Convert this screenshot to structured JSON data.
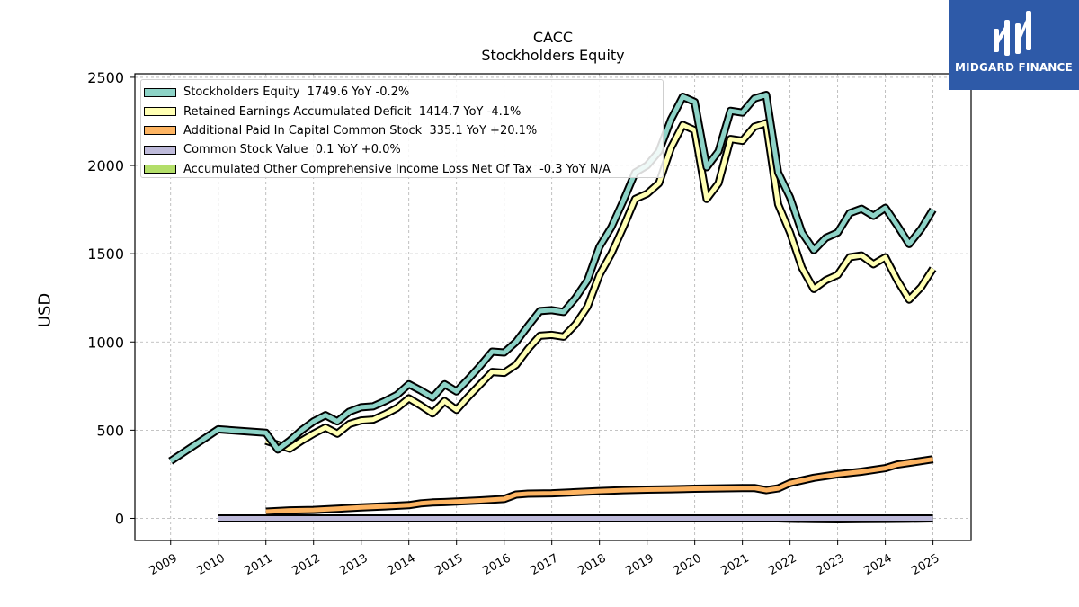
{
  "header": {
    "ticker": "CACC",
    "subtitle": "Stockholders  Equity"
  },
  "brand": {
    "name": "MIDGARD FINANCE",
    "color": "#2e5aa8"
  },
  "chart_data": {
    "type": "line",
    "title": "CACC",
    "subtitle": "Stockholders  Equity",
    "xlabel": "",
    "ylabel": "USD",
    "ylim": [
      -125,
      2520
    ],
    "xlim": [
      2008.25,
      2025.8
    ],
    "yticks": [
      0,
      500,
      1000,
      1500,
      2000,
      2500
    ],
    "xticks": [
      "2009",
      "2010",
      "2011",
      "2012",
      "2013",
      "2014",
      "2015",
      "2016",
      "2017",
      "2018",
      "2019",
      "2020",
      "2021",
      "2022",
      "2023",
      "2024",
      "2025"
    ],
    "grid": true,
    "legend_position": "top-left",
    "series": [
      {
        "name": "Stockholders Equity",
        "legend_label": "Stockholders Equity  1749.6 YoY -0.2%",
        "color": "#8dd3c7",
        "points": [
          [
            2009.0,
            325
          ],
          [
            2010.0,
            505
          ],
          [
            2011.0,
            485
          ],
          [
            2011.25,
            390
          ],
          [
            2011.5,
            440
          ],
          [
            2011.75,
            500
          ],
          [
            2012.0,
            550
          ],
          [
            2012.25,
            585
          ],
          [
            2012.5,
            550
          ],
          [
            2012.75,
            605
          ],
          [
            2013.0,
            630
          ],
          [
            2013.25,
            635
          ],
          [
            2013.5,
            665
          ],
          [
            2013.75,
            700
          ],
          [
            2014.0,
            760
          ],
          [
            2014.25,
            725
          ],
          [
            2014.5,
            685
          ],
          [
            2014.75,
            760
          ],
          [
            2015.0,
            720
          ],
          [
            2015.25,
            790
          ],
          [
            2015.5,
            865
          ],
          [
            2015.75,
            945
          ],
          [
            2016.0,
            940
          ],
          [
            2016.25,
            1000
          ],
          [
            2016.5,
            1090
          ],
          [
            2016.75,
            1175
          ],
          [
            2017.0,
            1180
          ],
          [
            2017.25,
            1170
          ],
          [
            2017.5,
            1250
          ],
          [
            2017.75,
            1350
          ],
          [
            2018.0,
            1540
          ],
          [
            2018.25,
            1650
          ],
          [
            2018.5,
            1800
          ],
          [
            2018.75,
            1960
          ],
          [
            2019.0,
            2000
          ],
          [
            2019.25,
            2080
          ],
          [
            2019.5,
            2260
          ],
          [
            2019.75,
            2390
          ],
          [
            2020.0,
            2360
          ],
          [
            2020.25,
            1990
          ],
          [
            2020.5,
            2080
          ],
          [
            2020.75,
            2310
          ],
          [
            2021.0,
            2300
          ],
          [
            2021.25,
            2380
          ],
          [
            2021.5,
            2400
          ],
          [
            2021.75,
            1960
          ],
          [
            2022.0,
            1820
          ],
          [
            2022.25,
            1620
          ],
          [
            2022.5,
            1520
          ],
          [
            2022.75,
            1590
          ],
          [
            2023.0,
            1620
          ],
          [
            2023.25,
            1730
          ],
          [
            2023.5,
            1755
          ],
          [
            2023.75,
            1715
          ],
          [
            2024.0,
            1760
          ],
          [
            2024.25,
            1660
          ],
          [
            2024.5,
            1555
          ],
          [
            2024.75,
            1640
          ],
          [
            2025.0,
            1750
          ]
        ]
      },
      {
        "name": "Retained Earnings Accumulated Deficit",
        "legend_label": "Retained Earnings Accumulated Deficit  1414.7 YoY -4.1%",
        "color": "#ffffb3",
        "points": [
          [
            2011.0,
            440
          ],
          [
            2011.5,
            395
          ],
          [
            2011.75,
            440
          ],
          [
            2012.0,
            480
          ],
          [
            2012.25,
            515
          ],
          [
            2012.5,
            480
          ],
          [
            2012.75,
            535
          ],
          [
            2013.0,
            555
          ],
          [
            2013.25,
            560
          ],
          [
            2013.5,
            590
          ],
          [
            2013.75,
            625
          ],
          [
            2014.0,
            680
          ],
          [
            2014.25,
            640
          ],
          [
            2014.5,
            595
          ],
          [
            2014.75,
            665
          ],
          [
            2015.0,
            615
          ],
          [
            2015.25,
            690
          ],
          [
            2015.5,
            760
          ],
          [
            2015.75,
            830
          ],
          [
            2016.0,
            825
          ],
          [
            2016.25,
            870
          ],
          [
            2016.5,
            960
          ],
          [
            2016.75,
            1035
          ],
          [
            2017.0,
            1040
          ],
          [
            2017.25,
            1030
          ],
          [
            2017.5,
            1100
          ],
          [
            2017.75,
            1200
          ],
          [
            2018.0,
            1380
          ],
          [
            2018.25,
            1500
          ],
          [
            2018.5,
            1650
          ],
          [
            2018.75,
            1810
          ],
          [
            2019.0,
            1840
          ],
          [
            2019.25,
            1900
          ],
          [
            2019.5,
            2100
          ],
          [
            2019.75,
            2230
          ],
          [
            2020.0,
            2200
          ],
          [
            2020.25,
            1810
          ],
          [
            2020.5,
            1900
          ],
          [
            2020.75,
            2150
          ],
          [
            2021.0,
            2140
          ],
          [
            2021.25,
            2220
          ],
          [
            2021.5,
            2240
          ],
          [
            2021.75,
            1780
          ],
          [
            2022.0,
            1620
          ],
          [
            2022.25,
            1420
          ],
          [
            2022.5,
            1300
          ],
          [
            2022.75,
            1350
          ],
          [
            2023.0,
            1380
          ],
          [
            2023.25,
            1480
          ],
          [
            2023.5,
            1490
          ],
          [
            2023.75,
            1440
          ],
          [
            2024.0,
            1480
          ],
          [
            2024.25,
            1350
          ],
          [
            2024.5,
            1240
          ],
          [
            2024.75,
            1310
          ],
          [
            2025.0,
            1415
          ]
        ]
      },
      {
        "name": "Additional Paid In Capital Common Stock",
        "legend_label": "Additional Paid In Capital Common Stock  335.1 YoY +20.1%",
        "color": "#fdb462",
        "points": [
          [
            2011.0,
            38
          ],
          [
            2011.5,
            45
          ],
          [
            2012.0,
            48
          ],
          [
            2012.5,
            55
          ],
          [
            2013.0,
            62
          ],
          [
            2013.5,
            68
          ],
          [
            2014.0,
            75
          ],
          [
            2014.25,
            85
          ],
          [
            2014.5,
            90
          ],
          [
            2014.75,
            92
          ],
          [
            2015.0,
            95
          ],
          [
            2015.5,
            102
          ],
          [
            2016.0,
            110
          ],
          [
            2016.25,
            135
          ],
          [
            2016.5,
            140
          ],
          [
            2017.0,
            142
          ],
          [
            2017.5,
            148
          ],
          [
            2018.0,
            155
          ],
          [
            2018.5,
            160
          ],
          [
            2019.0,
            163
          ],
          [
            2019.5,
            165
          ],
          [
            2020.0,
            168
          ],
          [
            2020.5,
            170
          ],
          [
            2021.0,
            172
          ],
          [
            2021.25,
            172
          ],
          [
            2021.5,
            160
          ],
          [
            2021.75,
            170
          ],
          [
            2022.0,
            200
          ],
          [
            2022.5,
            230
          ],
          [
            2023.0,
            250
          ],
          [
            2023.5,
            265
          ],
          [
            2024.0,
            285
          ],
          [
            2024.25,
            305
          ],
          [
            2024.5,
            315
          ],
          [
            2025.0,
            335
          ]
        ]
      },
      {
        "name": "Common Stock Value",
        "legend_label": "Common Stock Value  0.1 YoY +0.0%",
        "color": "#bebada",
        "points": [
          [
            2010.0,
            0.1
          ],
          [
            2011.0,
            0.1
          ],
          [
            2012.0,
            0.1
          ],
          [
            2013.0,
            0.1
          ],
          [
            2014.0,
            0.1
          ],
          [
            2015.0,
            0.1
          ],
          [
            2016.0,
            0.1
          ],
          [
            2017.0,
            0.1
          ],
          [
            2018.0,
            0.1
          ],
          [
            2019.0,
            0.1
          ],
          [
            2020.0,
            0.1
          ],
          [
            2021.0,
            0.1
          ],
          [
            2022.0,
            0.1
          ],
          [
            2023.0,
            0.1
          ],
          [
            2024.0,
            0.1
          ],
          [
            2025.0,
            0.1
          ]
        ]
      },
      {
        "name": "Accumulated Other Comprehensive Income Loss Net Of Tax",
        "legend_label": "Accumulated Other Comprehensive Income Loss Net Of Tax  -0.3 YoY N/A",
        "color": "#b3de69",
        "points": [
          [
            2010.0,
            0
          ],
          [
            2011.0,
            0
          ],
          [
            2012.0,
            0
          ],
          [
            2013.0,
            0
          ],
          [
            2014.0,
            0
          ],
          [
            2015.0,
            0
          ],
          [
            2016.0,
            0
          ],
          [
            2017.0,
            0
          ],
          [
            2018.0,
            0
          ],
          [
            2019.0,
            0
          ],
          [
            2020.0,
            0
          ],
          [
            2021.0,
            0
          ],
          [
            2021.75,
            0
          ],
          [
            2022.0,
            -2
          ],
          [
            2022.5,
            -4
          ],
          [
            2023.0,
            -5
          ],
          [
            2023.5,
            -4
          ],
          [
            2024.0,
            -3
          ],
          [
            2024.5,
            -2
          ],
          [
            2025.0,
            -0.3
          ]
        ]
      }
    ]
  }
}
